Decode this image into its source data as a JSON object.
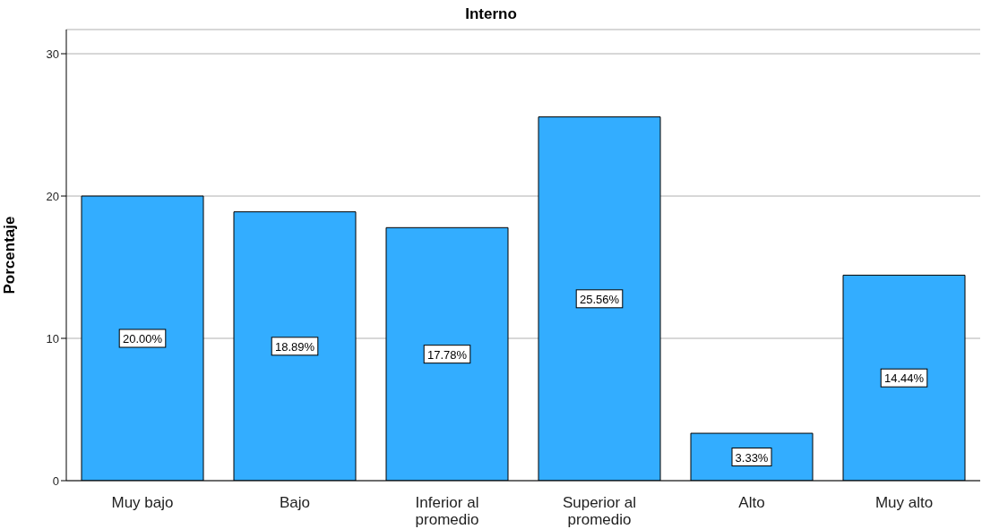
{
  "chart_data": {
    "type": "bar",
    "title": "Interno",
    "ylabel": "Porcentaje",
    "categories": [
      "Muy bajo",
      "Bajo",
      "Inferior al promedio",
      "Superior al promedio",
      "Alto",
      "Muy alto"
    ],
    "values": [
      20.0,
      18.89,
      17.78,
      25.56,
      3.33,
      14.44
    ],
    "value_labels": [
      "20.00%",
      "18.89%",
      "17.78%",
      "25.56%",
      "3.33%",
      "14.44%"
    ],
    "color": "#33adff",
    "ylim": [
      0,
      31.7
    ],
    "yticks": [
      0,
      10,
      20,
      30
    ],
    "grid": "y",
    "legend": false
  }
}
